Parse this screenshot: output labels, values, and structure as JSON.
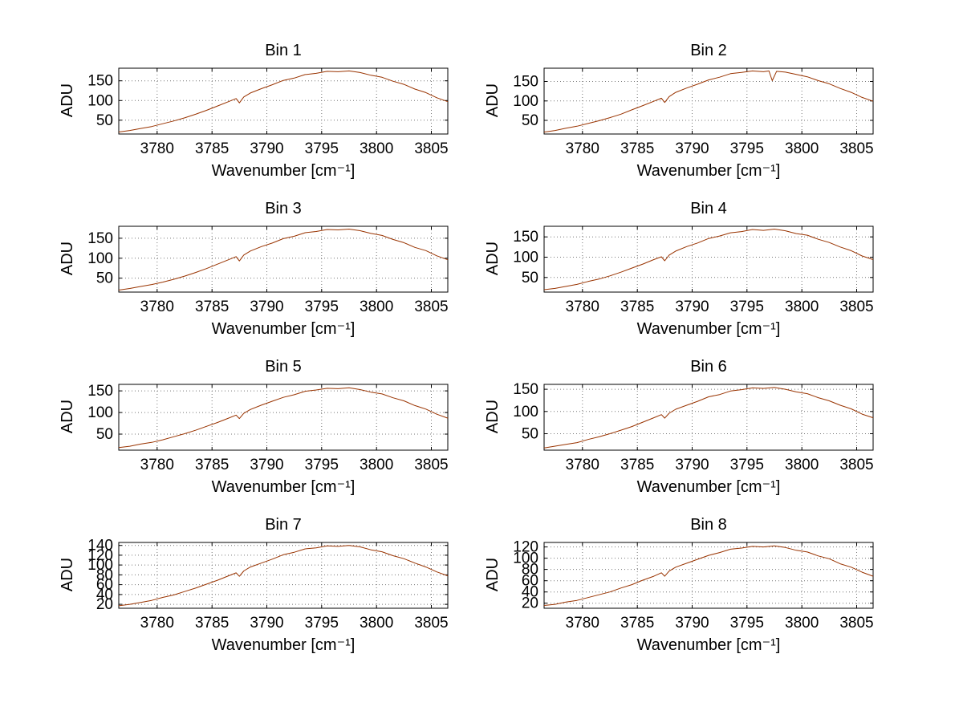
{
  "figure": {
    "background": "#ffffff",
    "line_color": "#993300",
    "grid_color": "#777777",
    "axis_color": "#000000"
  },
  "chart_data": [
    {
      "type": "line",
      "title": "Bin 1",
      "xlabel": "Wavenumber [cm⁻¹]",
      "ylabel": "ADU",
      "xlim": [
        3776.5,
        3806.5
      ],
      "ylim": [
        15,
        182
      ],
      "xticks": [
        3780,
        3785,
        3790,
        3795,
        3800,
        3805
      ],
      "yticks": [
        50,
        100,
        150
      ],
      "grid": true,
      "legend": "none",
      "points": [
        [
          3776.5,
          20
        ],
        [
          3777.5,
          24
        ],
        [
          3778.5,
          29
        ],
        [
          3779.5,
          34
        ],
        [
          3780.5,
          41
        ],
        [
          3781.5,
          48
        ],
        [
          3782.5,
          56
        ],
        [
          3783.5,
          65
        ],
        [
          3784.5,
          75
        ],
        [
          3785.5,
          86
        ],
        [
          3786.5,
          97
        ],
        [
          3787.2,
          105
        ],
        [
          3787.5,
          94
        ],
        [
          3787.9,
          109
        ],
        [
          3788.5,
          119
        ],
        [
          3789.5,
          130
        ],
        [
          3790.5,
          140
        ],
        [
          3791.5,
          151
        ],
        [
          3792.5,
          157
        ],
        [
          3793.5,
          166
        ],
        [
          3794.5,
          169
        ],
        [
          3795.5,
          174
        ],
        [
          3796.5,
          173
        ],
        [
          3797.5,
          175
        ],
        [
          3798.5,
          171
        ],
        [
          3799.5,
          164
        ],
        [
          3800.5,
          159
        ],
        [
          3801.5,
          149
        ],
        [
          3802.5,
          141
        ],
        [
          3803.5,
          129
        ],
        [
          3804.5,
          120
        ],
        [
          3805.5,
          107
        ],
        [
          3806.5,
          97
        ]
      ]
    },
    {
      "type": "line",
      "title": "Bin 2",
      "xlabel": "Wavenumber [cm⁻¹]",
      "ylabel": "ADU",
      "xlim": [
        3776.5,
        3806.5
      ],
      "ylim": [
        15,
        184
      ],
      "xticks": [
        3780,
        3785,
        3790,
        3795,
        3800,
        3805
      ],
      "yticks": [
        50,
        100,
        150
      ],
      "grid": true,
      "legend": "none",
      "points": [
        [
          3776.5,
          20
        ],
        [
          3777.5,
          24
        ],
        [
          3778.5,
          30
        ],
        [
          3779.5,
          35
        ],
        [
          3780.5,
          42
        ],
        [
          3781.5,
          49
        ],
        [
          3782.5,
          57
        ],
        [
          3783.5,
          66
        ],
        [
          3784.5,
          77
        ],
        [
          3785.5,
          88
        ],
        [
          3786.5,
          99
        ],
        [
          3787.2,
          107
        ],
        [
          3787.5,
          96
        ],
        [
          3787.9,
          111
        ],
        [
          3788.5,
          122
        ],
        [
          3789.5,
          133
        ],
        [
          3790.5,
          143
        ],
        [
          3791.5,
          154
        ],
        [
          3792.5,
          161
        ],
        [
          3793.5,
          170
        ],
        [
          3794.5,
          173
        ],
        [
          3795.5,
          177
        ],
        [
          3796.5,
          175
        ],
        [
          3797.0,
          177
        ],
        [
          3797.3,
          152
        ],
        [
          3797.7,
          176
        ],
        [
          3798.5,
          174
        ],
        [
          3799.5,
          168
        ],
        [
          3800.5,
          162
        ],
        [
          3801.5,
          152
        ],
        [
          3802.5,
          144
        ],
        [
          3803.5,
          132
        ],
        [
          3804.5,
          122
        ],
        [
          3805.5,
          109
        ],
        [
          3806.5,
          99
        ]
      ]
    },
    {
      "type": "line",
      "title": "Bin 3",
      "xlabel": "Wavenumber [cm⁻¹]",
      "ylabel": "ADU",
      "xlim": [
        3776.5,
        3806.5
      ],
      "ylim": [
        15,
        180
      ],
      "xticks": [
        3780,
        3785,
        3790,
        3795,
        3800,
        3805
      ],
      "yticks": [
        50,
        100,
        150
      ],
      "grid": true,
      "legend": "none",
      "points": [
        [
          3776.5,
          20
        ],
        [
          3777.5,
          24
        ],
        [
          3778.5,
          29
        ],
        [
          3779.5,
          34
        ],
        [
          3780.5,
          40
        ],
        [
          3781.5,
          47
        ],
        [
          3782.5,
          55
        ],
        [
          3783.5,
          64
        ],
        [
          3784.5,
          74
        ],
        [
          3785.5,
          85
        ],
        [
          3786.5,
          96
        ],
        [
          3787.2,
          104
        ],
        [
          3787.5,
          93
        ],
        [
          3787.9,
          108
        ],
        [
          3788.5,
          118
        ],
        [
          3789.5,
          129
        ],
        [
          3790.5,
          138
        ],
        [
          3791.5,
          149
        ],
        [
          3792.5,
          155
        ],
        [
          3793.5,
          164
        ],
        [
          3794.5,
          167
        ],
        [
          3795.5,
          172
        ],
        [
          3796.5,
          171
        ],
        [
          3797.5,
          173
        ],
        [
          3798.5,
          169
        ],
        [
          3799.5,
          162
        ],
        [
          3800.5,
          157
        ],
        [
          3801.5,
          147
        ],
        [
          3802.5,
          139
        ],
        [
          3803.5,
          127
        ],
        [
          3804.5,
          119
        ],
        [
          3805.5,
          106
        ],
        [
          3806.5,
          96
        ]
      ]
    },
    {
      "type": "line",
      "title": "Bin 4",
      "xlabel": "Wavenumber [cm⁻¹]",
      "ylabel": "ADU",
      "xlim": [
        3776.5,
        3806.5
      ],
      "ylim": [
        14,
        176
      ],
      "xticks": [
        3780,
        3785,
        3790,
        3795,
        3800,
        3805
      ],
      "yticks": [
        50,
        100,
        150
      ],
      "grid": true,
      "legend": "none",
      "points": [
        [
          3776.5,
          20
        ],
        [
          3777.5,
          23
        ],
        [
          3778.5,
          28
        ],
        [
          3779.5,
          33
        ],
        [
          3780.5,
          40
        ],
        [
          3781.5,
          46
        ],
        [
          3782.5,
          54
        ],
        [
          3783.5,
          63
        ],
        [
          3784.5,
          73
        ],
        [
          3785.5,
          83
        ],
        [
          3786.5,
          94
        ],
        [
          3787.2,
          101
        ],
        [
          3787.5,
          91
        ],
        [
          3787.9,
          105
        ],
        [
          3788.5,
          115
        ],
        [
          3789.5,
          126
        ],
        [
          3790.5,
          135
        ],
        [
          3791.5,
          146
        ],
        [
          3792.5,
          152
        ],
        [
          3793.5,
          160
        ],
        [
          3794.5,
          163
        ],
        [
          3795.5,
          168
        ],
        [
          3796.5,
          166
        ],
        [
          3797.5,
          169
        ],
        [
          3798.5,
          165
        ],
        [
          3799.5,
          158
        ],
        [
          3800.5,
          154
        ],
        [
          3801.5,
          144
        ],
        [
          3802.5,
          136
        ],
        [
          3803.5,
          125
        ],
        [
          3804.5,
          116
        ],
        [
          3805.5,
          103
        ],
        [
          3806.5,
          94
        ]
      ]
    },
    {
      "type": "line",
      "title": "Bin 5",
      "xlabel": "Wavenumber [cm⁻¹]",
      "ylabel": "ADU",
      "xlim": [
        3776.5,
        3806.5
      ],
      "ylim": [
        13,
        165
      ],
      "xticks": [
        3780,
        3785,
        3790,
        3795,
        3800,
        3805
      ],
      "yticks": [
        50,
        100,
        150
      ],
      "grid": true,
      "legend": "none",
      "points": [
        [
          3776.5,
          19
        ],
        [
          3777.5,
          22
        ],
        [
          3778.5,
          27
        ],
        [
          3779.5,
          31
        ],
        [
          3780.5,
          37
        ],
        [
          3781.5,
          44
        ],
        [
          3782.5,
          51
        ],
        [
          3783.5,
          59
        ],
        [
          3784.5,
          68
        ],
        [
          3785.5,
          77
        ],
        [
          3786.5,
          87
        ],
        [
          3787.2,
          94
        ],
        [
          3787.5,
          86
        ],
        [
          3787.9,
          98
        ],
        [
          3788.5,
          107
        ],
        [
          3789.5,
          117
        ],
        [
          3790.5,
          126
        ],
        [
          3791.5,
          135
        ],
        [
          3792.5,
          141
        ],
        [
          3793.5,
          149
        ],
        [
          3794.5,
          152
        ],
        [
          3795.5,
          156
        ],
        [
          3796.5,
          155
        ],
        [
          3797.5,
          157
        ],
        [
          3798.5,
          153
        ],
        [
          3799.5,
          147
        ],
        [
          3800.5,
          143
        ],
        [
          3801.5,
          134
        ],
        [
          3802.5,
          127
        ],
        [
          3803.5,
          116
        ],
        [
          3804.5,
          108
        ],
        [
          3805.5,
          96
        ],
        [
          3806.5,
          87
        ]
      ]
    },
    {
      "type": "line",
      "title": "Bin 6",
      "xlabel": "Wavenumber [cm⁻¹]",
      "ylabel": "ADU",
      "xlim": [
        3776.5,
        3806.5
      ],
      "ylim": [
        13,
        161
      ],
      "xticks": [
        3780,
        3785,
        3790,
        3795,
        3800,
        3805
      ],
      "yticks": [
        50,
        100,
        150
      ],
      "grid": true,
      "legend": "none",
      "points": [
        [
          3776.5,
          18
        ],
        [
          3777.5,
          22
        ],
        [
          3778.5,
          26
        ],
        [
          3779.5,
          30
        ],
        [
          3780.5,
          37
        ],
        [
          3781.5,
          43
        ],
        [
          3782.5,
          50
        ],
        [
          3783.5,
          58
        ],
        [
          3784.5,
          66
        ],
        [
          3785.5,
          76
        ],
        [
          3786.5,
          86
        ],
        [
          3787.2,
          93
        ],
        [
          3787.5,
          85
        ],
        [
          3787.9,
          96
        ],
        [
          3788.5,
          105
        ],
        [
          3789.5,
          114
        ],
        [
          3790.5,
          123
        ],
        [
          3791.5,
          133
        ],
        [
          3792.5,
          138
        ],
        [
          3793.5,
          146
        ],
        [
          3794.5,
          149
        ],
        [
          3795.5,
          153
        ],
        [
          3796.5,
          152
        ],
        [
          3797.5,
          154
        ],
        [
          3798.5,
          150
        ],
        [
          3799.5,
          144
        ],
        [
          3800.5,
          140
        ],
        [
          3801.5,
          131
        ],
        [
          3802.5,
          124
        ],
        [
          3803.5,
          114
        ],
        [
          3804.5,
          106
        ],
        [
          3805.5,
          94
        ],
        [
          3806.5,
          86
        ]
      ]
    },
    {
      "type": "line",
      "title": "Bin 7",
      "xlabel": "Wavenumber [cm⁻¹]",
      "ylabel": "ADU",
      "xlim": [
        3776.5,
        3806.5
      ],
      "ylim": [
        12,
        146
      ],
      "xticks": [
        3780,
        3785,
        3790,
        3795,
        3800,
        3805
      ],
      "yticks": [
        20,
        40,
        60,
        80,
        100,
        120,
        140
      ],
      "grid": true,
      "legend": "none",
      "points": [
        [
          3776.5,
          17
        ],
        [
          3777.5,
          20
        ],
        [
          3778.5,
          24
        ],
        [
          3779.5,
          28
        ],
        [
          3780.5,
          34
        ],
        [
          3781.5,
          39
        ],
        [
          3782.5,
          46
        ],
        [
          3783.5,
          53
        ],
        [
          3784.5,
          61
        ],
        [
          3785.5,
          69
        ],
        [
          3786.5,
          78
        ],
        [
          3787.2,
          84
        ],
        [
          3787.5,
          77
        ],
        [
          3787.9,
          88
        ],
        [
          3788.5,
          96
        ],
        [
          3789.5,
          104
        ],
        [
          3790.5,
          112
        ],
        [
          3791.5,
          121
        ],
        [
          3792.5,
          126
        ],
        [
          3793.5,
          133
        ],
        [
          3794.5,
          135
        ],
        [
          3795.5,
          139
        ],
        [
          3796.5,
          138
        ],
        [
          3797.5,
          140
        ],
        [
          3798.5,
          137
        ],
        [
          3799.5,
          131
        ],
        [
          3800.5,
          127
        ],
        [
          3801.5,
          119
        ],
        [
          3802.5,
          113
        ],
        [
          3803.5,
          104
        ],
        [
          3804.5,
          96
        ],
        [
          3805.5,
          86
        ],
        [
          3806.5,
          78
        ]
      ]
    },
    {
      "type": "line",
      "title": "Bin 8",
      "xlabel": "Wavenumber [cm⁻¹]",
      "ylabel": "ADU",
      "xlim": [
        3776.5,
        3806.5
      ],
      "ylim": [
        11,
        128
      ],
      "xticks": [
        3780,
        3785,
        3790,
        3795,
        3800,
        3805
      ],
      "yticks": [
        20,
        40,
        60,
        80,
        100,
        120
      ],
      "grid": true,
      "legend": "none",
      "points": [
        [
          3776.5,
          16
        ],
        [
          3777.5,
          18
        ],
        [
          3778.5,
          22
        ],
        [
          3779.5,
          25
        ],
        [
          3780.5,
          30
        ],
        [
          3781.5,
          35
        ],
        [
          3782.5,
          40
        ],
        [
          3783.5,
          47
        ],
        [
          3784.5,
          53
        ],
        [
          3785.5,
          61
        ],
        [
          3786.5,
          68
        ],
        [
          3787.2,
          74
        ],
        [
          3787.5,
          68
        ],
        [
          3787.9,
          77
        ],
        [
          3788.5,
          84
        ],
        [
          3789.5,
          91
        ],
        [
          3790.5,
          98
        ],
        [
          3791.5,
          105
        ],
        [
          3792.5,
          110
        ],
        [
          3793.5,
          116
        ],
        [
          3794.5,
          118
        ],
        [
          3795.5,
          121
        ],
        [
          3796.5,
          120
        ],
        [
          3797.5,
          122
        ],
        [
          3798.5,
          119
        ],
        [
          3799.5,
          114
        ],
        [
          3800.5,
          111
        ],
        [
          3801.5,
          104
        ],
        [
          3802.5,
          99
        ],
        [
          3803.5,
          90
        ],
        [
          3804.5,
          84
        ],
        [
          3805.5,
          75
        ],
        [
          3806.5,
          68
        ]
      ]
    }
  ]
}
